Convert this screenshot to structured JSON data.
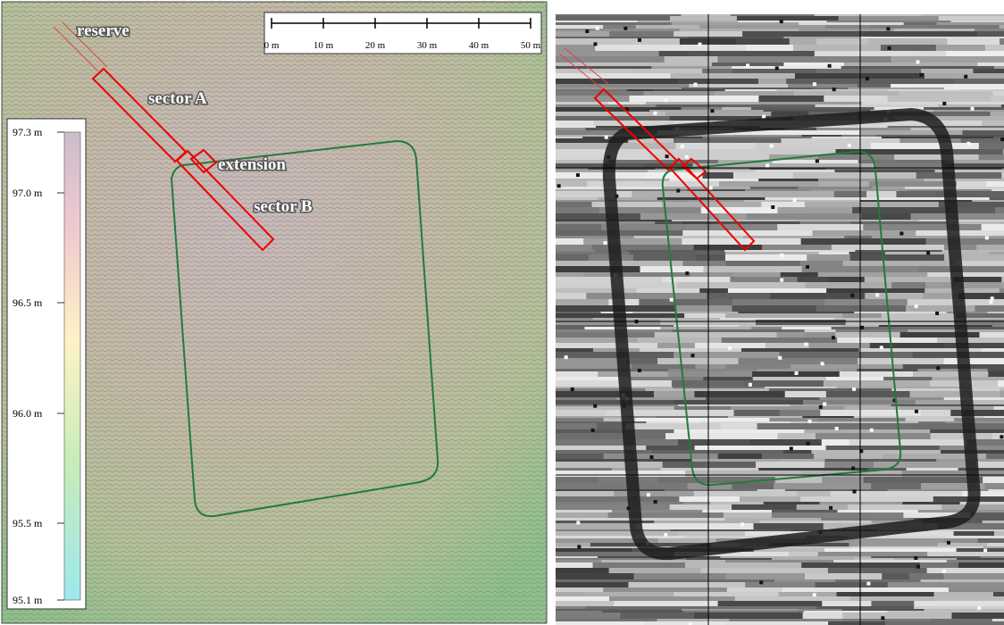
{
  "left_panel": {
    "labels": {
      "reserve": "reserve",
      "sector_a": "sector A",
      "extension": "extension",
      "sector_b": "sector B"
    },
    "scale_bar": {
      "ticks": [
        "0 m",
        "10 m",
        "20 m",
        "30 m",
        "40 m",
        "50 m"
      ]
    },
    "elevation_legend": {
      "ticks": [
        "97.3 m",
        "97.0 m",
        "96.5 m",
        "96.0 m",
        "95.5 m",
        "95.1 m"
      ]
    }
  }
}
